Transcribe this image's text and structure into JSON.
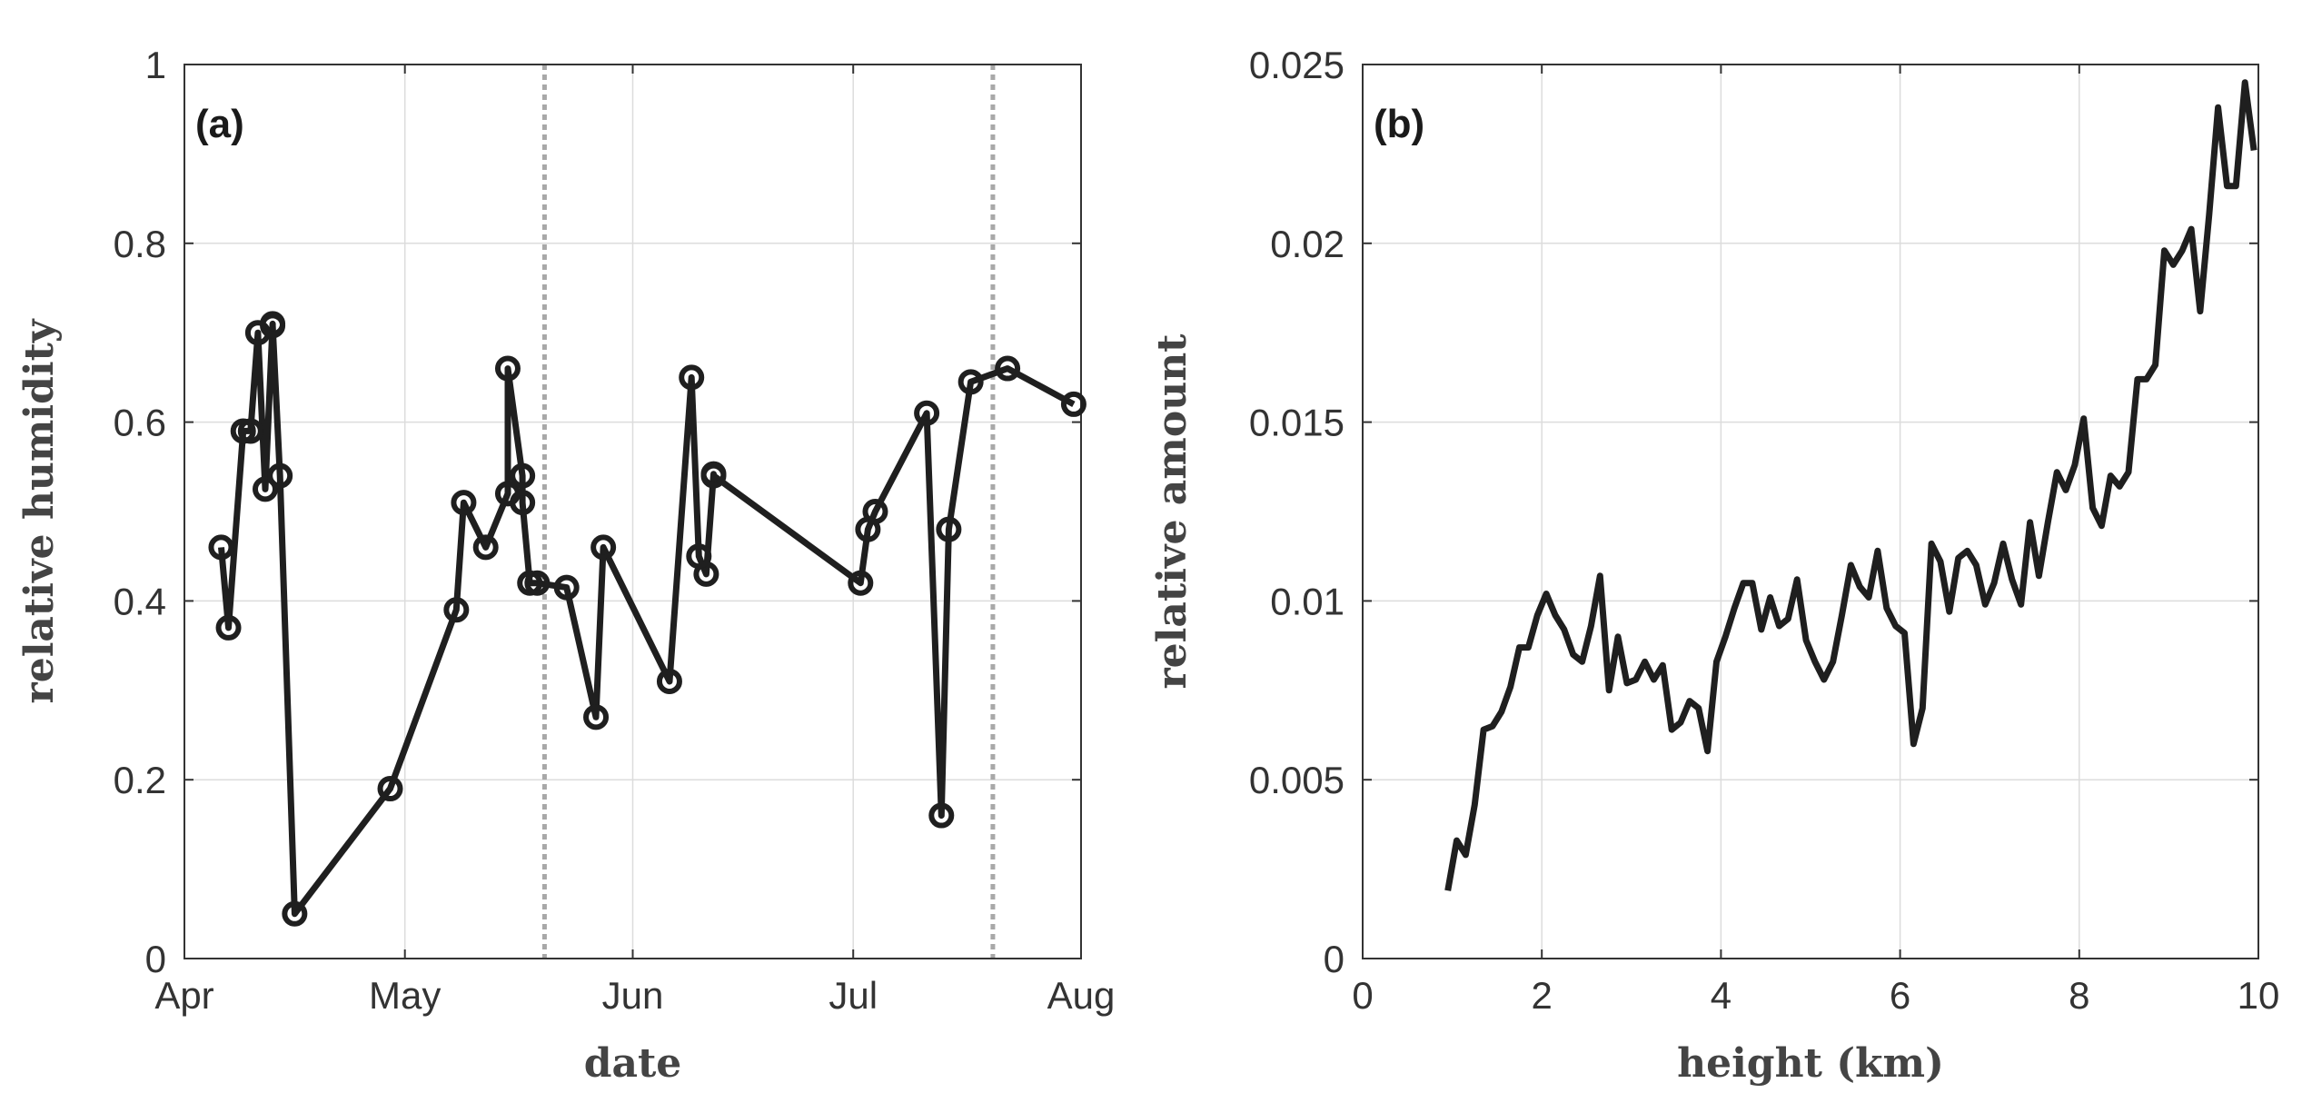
{
  "chart_data": [
    {
      "type": "line",
      "panel_label": "(a)",
      "xlabel": "date",
      "ylabel": "relative humidity",
      "xlim": [
        "2015-04-01",
        "2015-08-01"
      ],
      "ylim": [
        0,
        1
      ],
      "x_ticks": [
        {
          "date": "2015-04-01",
          "label": "Apr"
        },
        {
          "date": "2015-05-01",
          "label": "May"
        },
        {
          "date": "2015-06-01",
          "label": "Jun"
        },
        {
          "date": "2015-07-01",
          "label": "Jul"
        },
        {
          "date": "2015-08-01",
          "label": "Aug"
        }
      ],
      "y_ticks": [
        {
          "value": 0,
          "label": "0"
        },
        {
          "value": 0.2,
          "label": "0.2"
        },
        {
          "value": 0.4,
          "label": "0.4"
        },
        {
          "value": 0.6,
          "label": "0.6"
        },
        {
          "value": 0.8,
          "label": "0.8"
        },
        {
          "value": 1,
          "label": "1"
        }
      ],
      "grid": true,
      "markers": "circle",
      "vertical_lines": [
        "2015-05-20",
        "2015-07-20"
      ],
      "series": [
        {
          "x": [
            "2015-04-06",
            "2015-04-07",
            "2015-04-09",
            "2015-04-10",
            "2015-04-11",
            "2015-04-12",
            "2015-04-13",
            "2015-04-13",
            "2015-04-14",
            "2015-04-16",
            "2015-04-29",
            "2015-05-08",
            "2015-05-09",
            "2015-05-12",
            "2015-05-15",
            "2015-05-15",
            "2015-05-17",
            "2015-05-17",
            "2015-05-18",
            "2015-05-19",
            "2015-05-23",
            "2015-05-27",
            "2015-05-28",
            "2015-06-06",
            "2015-06-09",
            "2015-06-10",
            "2015-06-11",
            "2015-06-12",
            "2015-06-12",
            "2015-07-02",
            "2015-07-03",
            "2015-07-04",
            "2015-07-11",
            "2015-07-13",
            "2015-07-14",
            "2015-07-17",
            "2015-07-22",
            "2015-07-31"
          ],
          "values": [
            0.46,
            0.37,
            0.59,
            0.59,
            0.7,
            0.525,
            0.71,
            0.708,
            0.54,
            0.05,
            0.19,
            0.39,
            0.51,
            0.46,
            0.52,
            0.66,
            0.54,
            0.51,
            0.42,
            0.42,
            0.415,
            0.27,
            0.46,
            0.31,
            0.65,
            0.45,
            0.43,
            0.542,
            0.54,
            0.42,
            0.48,
            0.5,
            0.61,
            0.16,
            0.48,
            0.645,
            0.66,
            0.62
          ]
        }
      ]
    },
    {
      "type": "line",
      "panel_label": "(b)",
      "xlabel": "height (km)",
      "ylabel": "relative amount",
      "xlim": [
        0,
        10
      ],
      "ylim": [
        0,
        0.025
      ],
      "x_ticks": [
        {
          "value": 0,
          "label": "0"
        },
        {
          "value": 2,
          "label": "2"
        },
        {
          "value": 4,
          "label": "4"
        },
        {
          "value": 6,
          "label": "6"
        },
        {
          "value": 8,
          "label": "8"
        },
        {
          "value": 10,
          "label": "10"
        }
      ],
      "y_ticks": [
        {
          "value": 0,
          "label": "0"
        },
        {
          "value": 0.005,
          "label": "0.005"
        },
        {
          "value": 0.01,
          "label": "0.01"
        },
        {
          "value": 0.015,
          "label": "0.015"
        },
        {
          "value": 0.02,
          "label": "0.02"
        },
        {
          "value": 0.025,
          "label": "0.025"
        }
      ],
      "grid": true,
      "series": [
        {
          "x": [
            0.95,
            1.05,
            1.15,
            1.25,
            1.35,
            1.45,
            1.55,
            1.65,
            1.75,
            1.85,
            1.95,
            2.05,
            2.15,
            2.25,
            2.35,
            2.45,
            2.55,
            2.65,
            2.75,
            2.85,
            2.95,
            3.05,
            3.15,
            3.25,
            3.35,
            3.45,
            3.55,
            3.65,
            3.75,
            3.85,
            3.95,
            4.05,
            4.15,
            4.25,
            4.35,
            4.45,
            4.55,
            4.65,
            4.75,
            4.85,
            4.95,
            5.05,
            5.15,
            5.25,
            5.35,
            5.45,
            5.55,
            5.65,
            5.75,
            5.85,
            5.95,
            6.05,
            6.15,
            6.25,
            6.35,
            6.45,
            6.55,
            6.65,
            6.75,
            6.85,
            6.95,
            7.05,
            7.15,
            7.25,
            7.35,
            7.45,
            7.55,
            7.65,
            7.75,
            7.85,
            7.95,
            8.05,
            8.15,
            8.25,
            8.35,
            8.45,
            8.55,
            8.65,
            8.75,
            8.85,
            8.95,
            9.05,
            9.15,
            9.25,
            9.35,
            9.45,
            9.55,
            9.65,
            9.75,
            9.85,
            9.95
          ],
          "values": [
            0.0019,
            0.0033,
            0.0029,
            0.0043,
            0.0064,
            0.0065,
            0.0069,
            0.0076,
            0.0087,
            0.0087,
            0.0096,
            0.0102,
            0.0096,
            0.0092,
            0.0085,
            0.0083,
            0.0093,
            0.0107,
            0.0075,
            0.009,
            0.0077,
            0.0078,
            0.0083,
            0.0078,
            0.0082,
            0.0064,
            0.0066,
            0.0072,
            0.007,
            0.0058,
            0.0083,
            0.009,
            0.0098,
            0.0105,
            0.0105,
            0.0092,
            0.0101,
            0.0093,
            0.0095,
            0.0106,
            0.0089,
            0.0083,
            0.0078,
            0.0083,
            0.0096,
            0.011,
            0.0104,
            0.0101,
            0.0114,
            0.0098,
            0.0093,
            0.0091,
            0.006,
            0.007,
            0.0116,
            0.0111,
            0.0097,
            0.0112,
            0.0114,
            0.011,
            0.0099,
            0.0105,
            0.0116,
            0.0106,
            0.0099,
            0.0122,
            0.0107,
            0.0122,
            0.0136,
            0.0131,
            0.0138,
            0.0151,
            0.0126,
            0.0121,
            0.0135,
            0.0132,
            0.0136,
            0.0162,
            0.0162,
            0.0166,
            0.0198,
            0.0194,
            0.0198,
            0.0204,
            0.0181,
            0.0208,
            0.0238,
            0.0216,
            0.0216,
            0.0245,
            0.0226
          ]
        }
      ]
    }
  ]
}
